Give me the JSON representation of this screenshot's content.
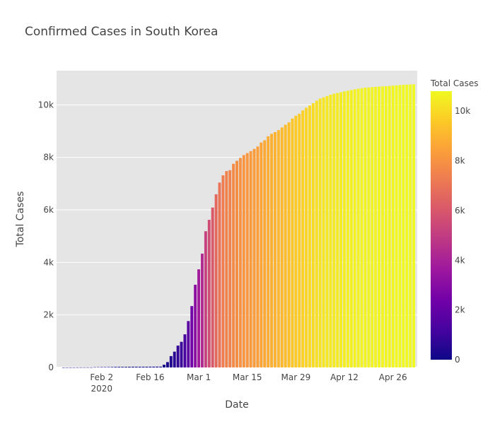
{
  "chart_data": {
    "type": "bar",
    "title": "Confirmed Cases in South Korea",
    "xlabel": "Date",
    "ylabel": "Total Cases",
    "x_start": "2020-01-22",
    "x_end": "2020-05-02",
    "xlim": [
      "2020-01-20",
      "2020-05-03"
    ],
    "ylim": [
      0,
      11300
    ],
    "x_ticks": [
      {
        "date": "2020-02-02",
        "label": "Feb 2",
        "sublabel": "2020"
      },
      {
        "date": "2020-02-16",
        "label": "Feb 16"
      },
      {
        "date": "2020-03-01",
        "label": "Mar 1"
      },
      {
        "date": "2020-03-15",
        "label": "Mar 15"
      },
      {
        "date": "2020-03-29",
        "label": "Mar 29"
      },
      {
        "date": "2020-04-12",
        "label": "Apr 12"
      },
      {
        "date": "2020-04-26",
        "label": "Apr 26"
      }
    ],
    "y_ticks": [
      {
        "value": 0,
        "label": "0"
      },
      {
        "value": 2000,
        "label": "2k"
      },
      {
        "value": 4000,
        "label": "4k"
      },
      {
        "value": 6000,
        "label": "6k"
      },
      {
        "value": 8000,
        "label": "8k"
      },
      {
        "value": 10000,
        "label": "10k"
      }
    ],
    "values": [
      1,
      1,
      2,
      2,
      3,
      4,
      4,
      4,
      4,
      11,
      12,
      15,
      15,
      16,
      19,
      23,
      24,
      24,
      25,
      27,
      28,
      28,
      28,
      28,
      28,
      29,
      30,
      31,
      31,
      104,
      204,
      433,
      602,
      833,
      977,
      1261,
      1766,
      2337,
      3150,
      3736,
      4335,
      5186,
      5621,
      6088,
      6593,
      7041,
      7314,
      7478,
      7513,
      7755,
      7869,
      7979,
      8086,
      8162,
      8236,
      8320,
      8413,
      8565,
      8652,
      8799,
      8897,
      8961,
      9037,
      9137,
      9241,
      9332,
      9478,
      9583,
      9661,
      9786,
      9887,
      9976,
      10062,
      10156,
      10237,
      10284,
      10331,
      10384,
      10423,
      10450,
      10480,
      10512,
      10537,
      10564,
      10591,
      10613,
      10635,
      10653,
      10661,
      10674,
      10683,
      10694,
      10702,
      10708,
      10718,
      10728,
      10738,
      10752,
      10761,
      10765,
      10774,
      10780
    ],
    "colorbar": {
      "title": "Total Cases",
      "range": [
        0,
        10800
      ],
      "ticks": [
        {
          "value": 0,
          "label": "0"
        },
        {
          "value": 2000,
          "label": "2k"
        },
        {
          "value": 4000,
          "label": "4k"
        },
        {
          "value": 6000,
          "label": "6k"
        },
        {
          "value": 8000,
          "label": "8k"
        },
        {
          "value": 10000,
          "label": "10k"
        }
      ],
      "colorscale": [
        "#0d0887",
        "#46039f",
        "#7201a8",
        "#9c179e",
        "#bd3786",
        "#d8576b",
        "#ed7953",
        "#fb9f3a",
        "#fdca26",
        "#f0f921"
      ]
    },
    "plot_bg": "#e5e5e5",
    "grid": true
  }
}
